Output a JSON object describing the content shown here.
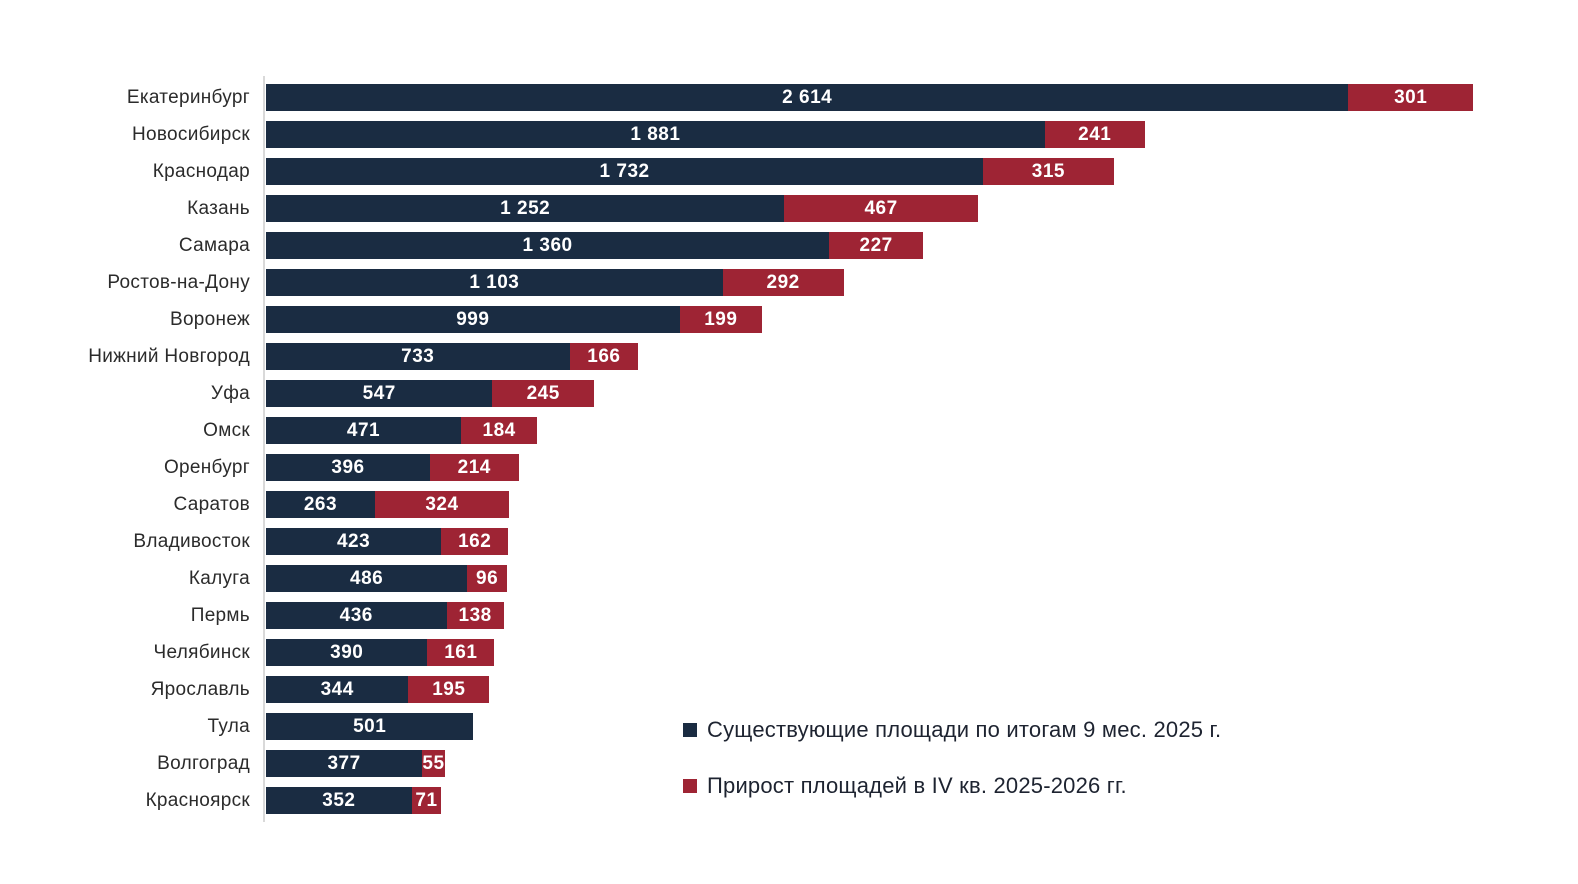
{
  "chart_data": {
    "type": "bar",
    "orientation": "horizontal",
    "stacked": true,
    "title": "",
    "xlabel": "",
    "ylabel": "",
    "grid": false,
    "xlim": [
      0,
      2915
    ],
    "legend_position": "inside-bottom-right",
    "value_label_style": "inside-center-white-bold",
    "categories": [
      "Екатеринбург",
      "Новосибирск",
      "Краснодар",
      "Казань",
      "Самара",
      "Ростов-на-Дону",
      "Воронеж",
      "Нижний Новгород",
      "Уфа",
      "Омск",
      "Оренбург",
      "Саратов",
      "Владивосток",
      "Калуга",
      "Пермь",
      "Челябинск",
      "Ярославль",
      "Тула",
      "Волгоград",
      "Красноярск"
    ],
    "series": [
      {
        "name": "Существующие площади по итогам 9 мес. 2025 г.",
        "color": "#1a2c42",
        "values": [
          2614,
          1881,
          1732,
          1252,
          1360,
          1103,
          999,
          733,
          547,
          471,
          396,
          263,
          423,
          486,
          436,
          390,
          344,
          501,
          377,
          352
        ],
        "labels": [
          "2 614",
          "1 881",
          "1 732",
          "1 252",
          "1 360",
          "1 103",
          "999",
          "733",
          "547",
          "471",
          "396",
          "263",
          "423",
          "486",
          "436",
          "390",
          "344",
          "501",
          "377",
          "352"
        ]
      },
      {
        "name": "Прирост площадей в IV кв. 2025-2026 гг.",
        "color": "#9e2434",
        "values": [
          301,
          241,
          315,
          467,
          227,
          292,
          199,
          166,
          245,
          184,
          214,
          324,
          162,
          96,
          138,
          161,
          195,
          0,
          55,
          71
        ],
        "labels": [
          "301",
          "241",
          "315",
          "467",
          "227",
          "292",
          "199",
          "166",
          "245",
          "184",
          "214",
          "324",
          "162",
          "96",
          "138",
          "161",
          "195",
          "",
          "55",
          "71"
        ]
      }
    ]
  },
  "legend": {
    "items": [
      {
        "label": "Существующие площади по итогам 9 мес. 2025 г.",
        "color": "#1a2c42"
      },
      {
        "label": "Прирост площадей в IV кв. 2025-2026 гг.",
        "color": "#9e2434"
      }
    ]
  },
  "colors": {
    "background": "#ffffff",
    "axis_line": "#d9d9d9",
    "category_text": "#2b2b2b",
    "value_text": "#ffffff",
    "legend_text": "#1d2330"
  }
}
